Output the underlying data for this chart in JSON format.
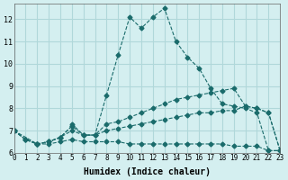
{
  "xlabel": "Humidex (Indice chaleur)",
  "ylabel": "",
  "background_color": "#d4eff0",
  "grid_color": "#b0d8da",
  "line_color": "#1a6b6b",
  "xlim": [
    0,
    23
  ],
  "ylim": [
    6,
    12.5
  ],
  "yticks": [
    6,
    7,
    8,
    9,
    10,
    11,
    12
  ],
  "xticks": [
    0,
    1,
    2,
    3,
    4,
    5,
    6,
    7,
    8,
    9,
    10,
    11,
    12,
    13,
    14,
    15,
    16,
    17,
    18,
    19,
    20,
    21,
    22,
    23
  ],
  "line1_x": [
    0,
    1,
    2,
    3,
    4,
    5,
    5,
    6,
    7,
    8,
    9,
    10,
    11,
    12,
    13,
    14,
    15,
    16,
    17,
    18,
    19,
    20,
    21,
    22,
    23
  ],
  "line1_y": [
    7.0,
    6.6,
    6.4,
    6.5,
    6.7,
    7.2,
    7.3,
    6.8,
    6.8,
    8.6,
    10.4,
    12.1,
    11.6,
    12.1,
    12.5,
    11.0,
    10.3,
    9.8,
    8.9,
    8.2,
    8.1,
    8.0,
    7.8,
    6.1,
    6.1
  ],
  "line2_x": [
    0,
    1,
    2,
    3,
    4,
    5,
    6,
    7,
    8,
    9,
    10,
    11,
    12,
    13,
    14,
    15,
    16,
    17,
    18,
    19,
    20,
    21,
    22,
    23
  ],
  "line2_y": [
    7.0,
    6.6,
    6.4,
    6.5,
    6.7,
    7.2,
    6.8,
    6.8,
    7.3,
    7.4,
    7.6,
    7.8,
    8.0,
    8.2,
    8.4,
    8.5,
    8.6,
    8.7,
    8.8,
    8.9,
    8.1,
    8.0,
    7.8,
    6.1
  ],
  "line3_x": [
    0,
    1,
    2,
    3,
    4,
    5,
    6,
    7,
    8,
    9,
    10,
    11,
    12,
    13,
    14,
    15,
    16,
    17,
    18,
    19,
    20,
    21,
    22,
    23
  ],
  "line3_y": [
    7.0,
    6.6,
    6.4,
    6.5,
    6.7,
    7.0,
    6.8,
    6.8,
    7.0,
    7.1,
    7.2,
    7.3,
    7.4,
    7.5,
    7.6,
    7.7,
    7.8,
    7.8,
    7.9,
    7.9,
    8.1,
    8.0,
    7.8,
    6.1
  ],
  "line4_x": [
    0,
    2,
    3,
    4,
    5,
    6,
    7,
    8,
    9,
    10,
    11,
    12,
    13,
    14,
    15,
    16,
    17,
    18,
    19,
    20,
    21,
    22,
    23
  ],
  "line4_y": [
    7.0,
    6.4,
    6.4,
    6.5,
    6.6,
    6.5,
    6.5,
    6.5,
    6.5,
    6.4,
    6.4,
    6.4,
    6.4,
    6.4,
    6.4,
    6.4,
    6.4,
    6.4,
    6.3,
    6.3,
    6.3,
    6.1,
    6.1
  ]
}
